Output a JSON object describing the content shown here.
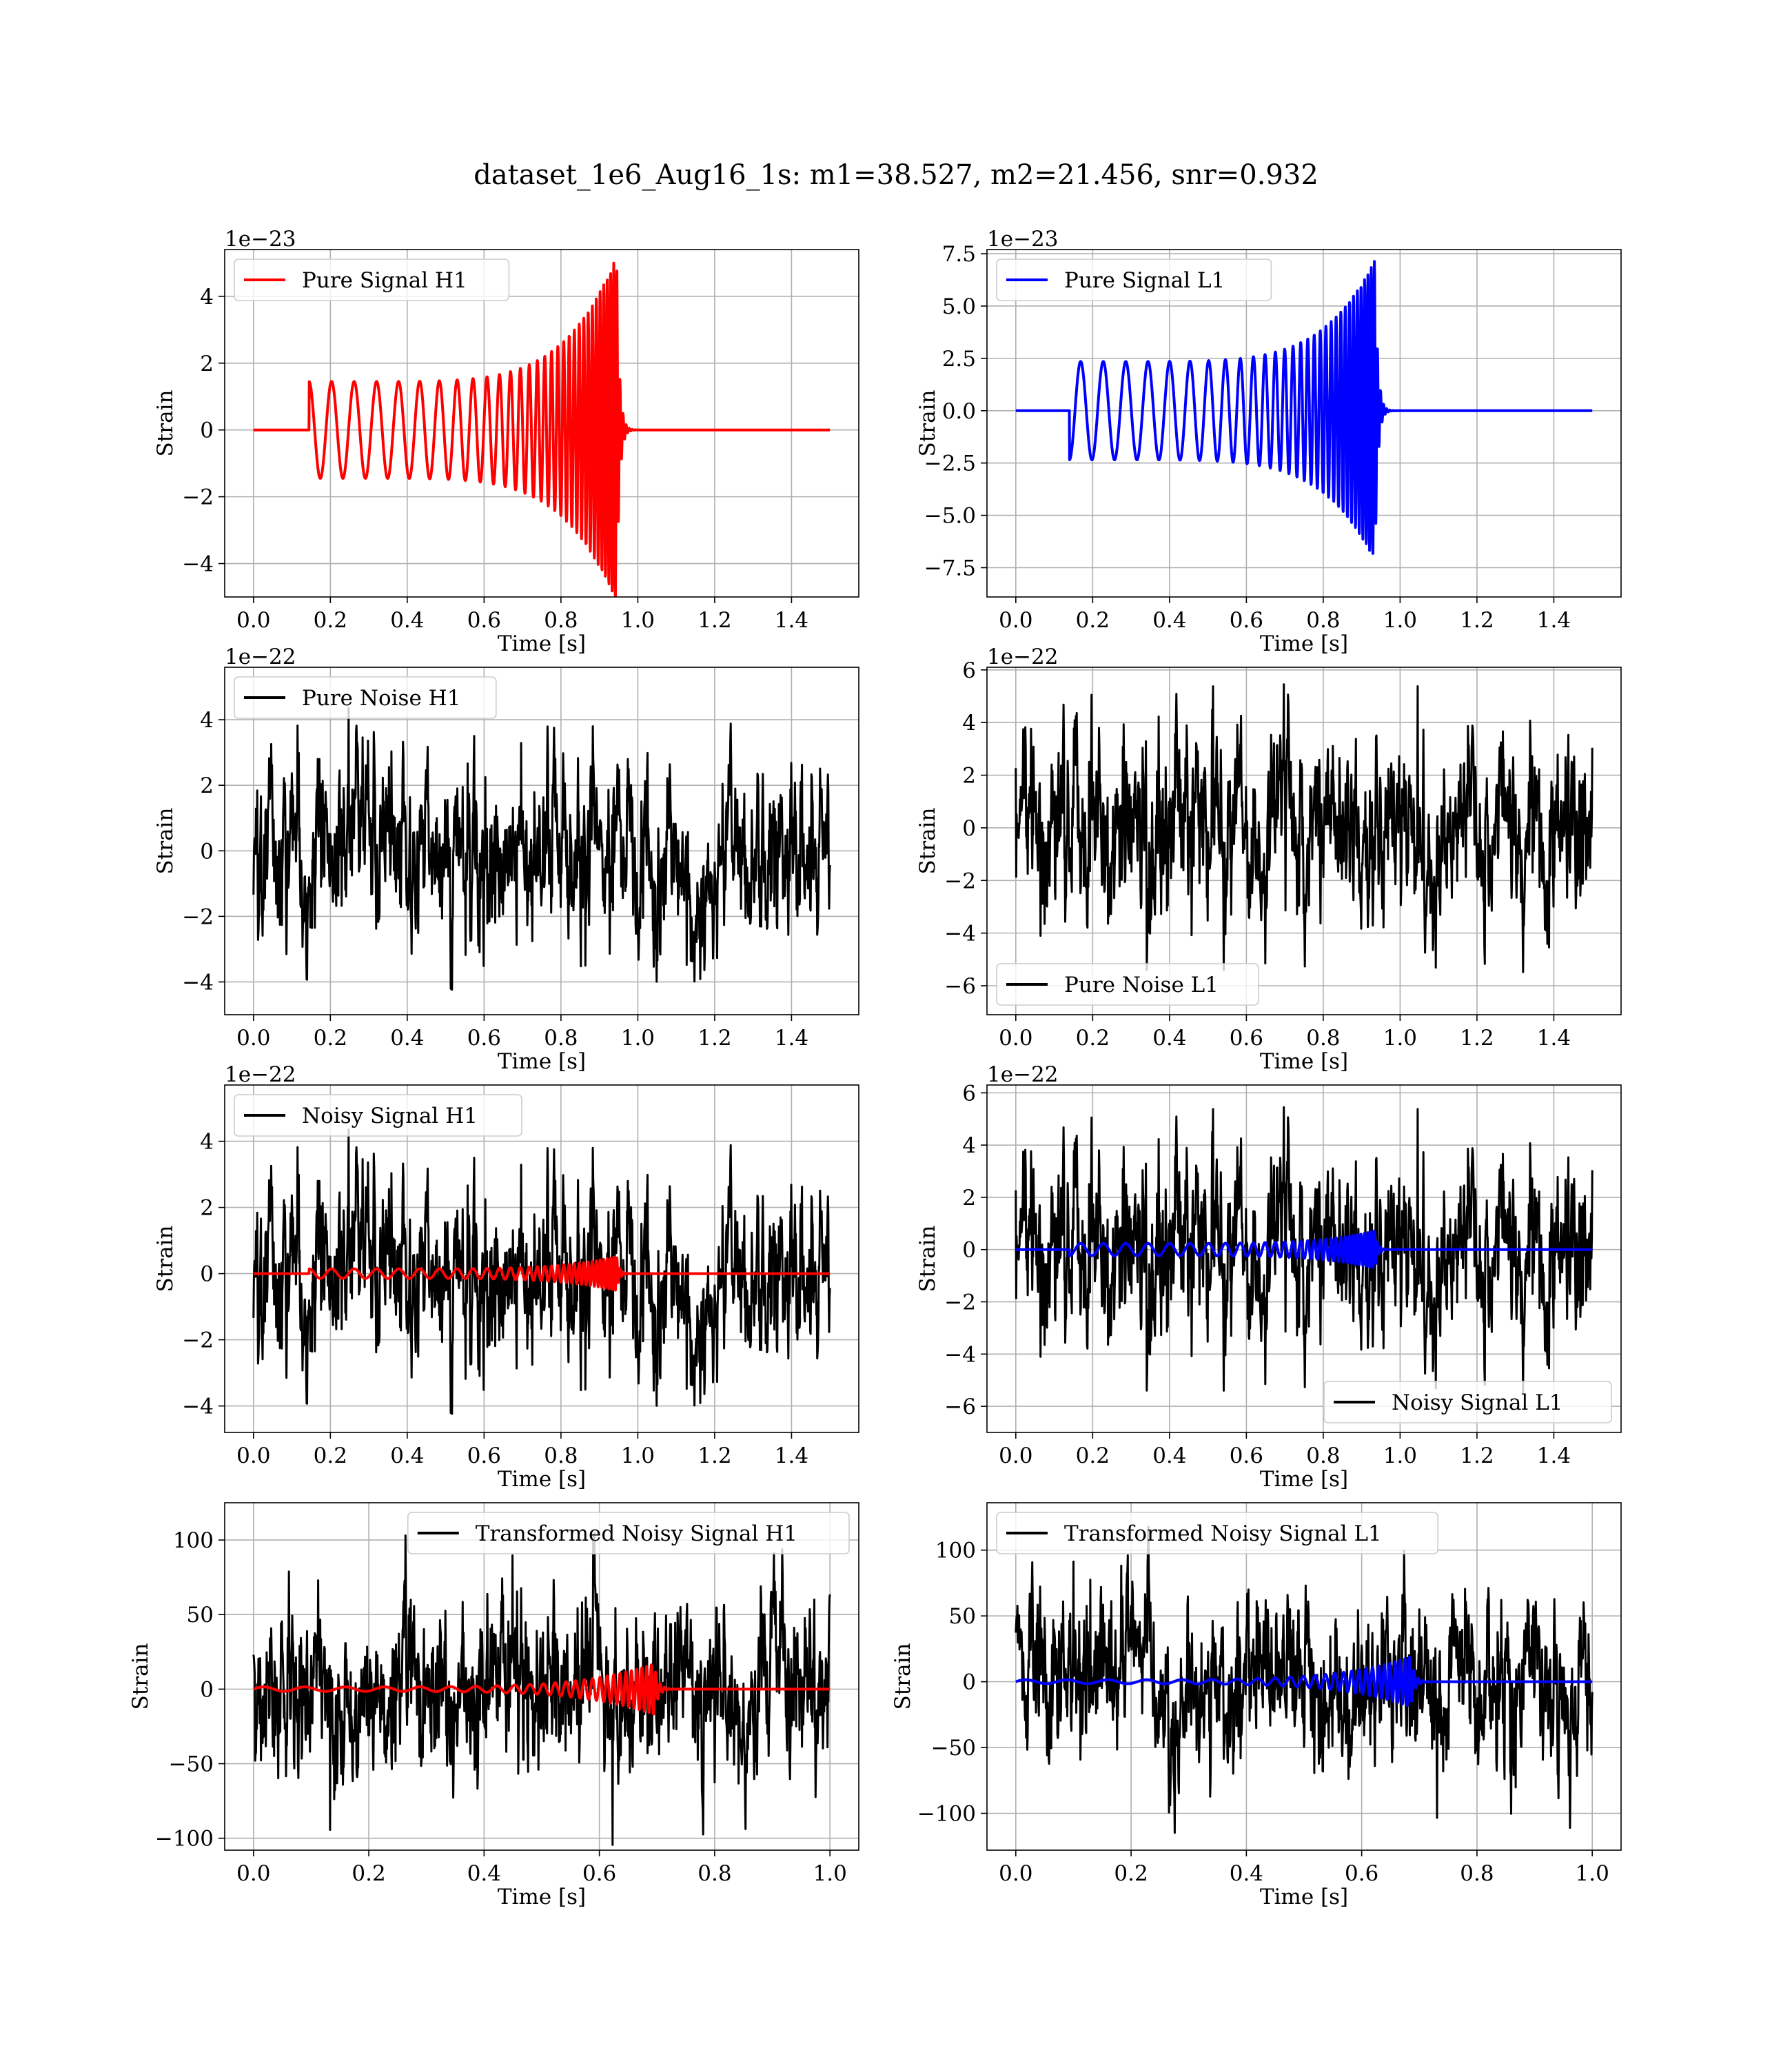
{
  "title": "dataset_1e6_Aug16_1s: m1=38.527, m2=21.456, snr=0.932",
  "colors": {
    "h1": "#ff0000",
    "l1": "#0000ff",
    "noise": "#000000",
    "grid": "#b0b0b0"
  },
  "chart_data": [
    {
      "type": "line",
      "panel": "pure-signal-h1",
      "xlabel": "Time [s]",
      "ylabel": "Strain",
      "offset_text": "1e−23",
      "xlim": [
        -0.075,
        1.575
      ],
      "ylim": [
        -5.0,
        5.4
      ],
      "xticks": [
        0.0,
        0.2,
        0.4,
        0.6,
        0.8,
        1.0,
        1.2,
        1.4
      ],
      "xtick_labels": [
        "0.0",
        "0.2",
        "0.4",
        "0.6",
        "0.8",
        "1.0",
        "1.2",
        "1.4"
      ],
      "yticks": [
        -4,
        -2,
        0,
        2,
        4
      ],
      "ytick_labels": [
        "−4",
        "−2",
        "0",
        "2",
        "4"
      ],
      "legend": {
        "position": "upper left",
        "entries": [
          {
            "label": "Pure Signal H1",
            "color": "#ff0000"
          }
        ]
      },
      "series": [
        {
          "name": "Pure Signal H1",
          "kind": "chirp",
          "color": "#ff0000",
          "x_range": [
            0.0,
            1.5
          ],
          "t_start": 0.145,
          "t_merge": 0.945,
          "amp_start": 1.45,
          "amp_peak": 5.2,
          "freq_start": 17,
          "freq_end": 125,
          "phase": 1.57
        }
      ]
    },
    {
      "type": "line",
      "panel": "pure-signal-l1",
      "xlabel": "Time [s]",
      "ylabel": "Strain",
      "offset_text": "1e−23",
      "xlim": [
        -0.075,
        1.575
      ],
      "ylim": [
        -8.9,
        7.7
      ],
      "xticks": [
        0.0,
        0.2,
        0.4,
        0.6,
        0.8,
        1.0,
        1.2,
        1.4
      ],
      "xtick_labels": [
        "0.0",
        "0.2",
        "0.4",
        "0.6",
        "0.8",
        "1.0",
        "1.2",
        "1.4"
      ],
      "yticks": [
        -7.5,
        -5.0,
        -2.5,
        0.0,
        2.5,
        5.0,
        7.5
      ],
      "ytick_labels": [
        "−7.5",
        "−5.0",
        "−2.5",
        "0.0",
        "2.5",
        "5.0",
        "7.5"
      ],
      "legend": {
        "position": "upper left",
        "entries": [
          {
            "label": "Pure Signal L1",
            "color": "#0000ff"
          }
        ]
      },
      "series": [
        {
          "name": "Pure Signal L1",
          "kind": "chirp",
          "color": "#0000ff",
          "x_range": [
            0.0,
            1.5
          ],
          "t_start": 0.14,
          "t_merge": 0.935,
          "amp_start": 2.35,
          "amp_peak": 7.2,
          "freq_start": 17,
          "freq_end": 125,
          "phase": -1.57
        }
      ]
    },
    {
      "type": "line",
      "panel": "pure-noise-h1",
      "xlabel": "Time [s]",
      "ylabel": "Strain",
      "offset_text": "1e−22",
      "xlim": [
        -0.075,
        1.575
      ],
      "ylim": [
        -5.0,
        5.6
      ],
      "xticks": [
        0.0,
        0.2,
        0.4,
        0.6,
        0.8,
        1.0,
        1.2,
        1.4
      ],
      "xtick_labels": [
        "0.0",
        "0.2",
        "0.4",
        "0.6",
        "0.8",
        "1.0",
        "1.2",
        "1.4"
      ],
      "yticks": [
        -4,
        -2,
        0,
        2,
        4
      ],
      "ytick_labels": [
        "−4",
        "−2",
        "0",
        "2",
        "4"
      ],
      "legend": {
        "position": "upper left",
        "entries": [
          {
            "label": "Pure Noise H1",
            "color": "#000000"
          }
        ]
      },
      "series": [
        {
          "name": "Pure Noise H1",
          "kind": "noise",
          "color": "#000000",
          "x_range": [
            0.0,
            1.5
          ],
          "amp": 1.3,
          "peak": 5.4,
          "seed": 11
        }
      ]
    },
    {
      "type": "line",
      "panel": "pure-noise-l1",
      "xlabel": "Time [s]",
      "ylabel": "Strain",
      "offset_text": "1e−22",
      "xlim": [
        -0.075,
        1.575
      ],
      "ylim": [
        -7.1,
        6.1
      ],
      "xticks": [
        0.0,
        0.2,
        0.4,
        0.6,
        0.8,
        1.0,
        1.2,
        1.4
      ],
      "xtick_labels": [
        "0.0",
        "0.2",
        "0.4",
        "0.6",
        "0.8",
        "1.0",
        "1.2",
        "1.4"
      ],
      "yticks": [
        -6,
        -4,
        -2,
        0,
        2,
        4,
        6
      ],
      "ytick_labels": [
        "−6",
        "−4",
        "−2",
        "0",
        "2",
        "4",
        "6"
      ],
      "legend": {
        "position": "lower left",
        "entries": [
          {
            "label": "Pure Noise L1",
            "color": "#000000"
          }
        ]
      },
      "series": [
        {
          "name": "Pure Noise L1",
          "kind": "noise",
          "color": "#000000",
          "x_range": [
            0.0,
            1.5
          ],
          "amp": 1.6,
          "peak": 5.6,
          "seed": 23
        }
      ]
    },
    {
      "type": "line",
      "panel": "noisy-signal-h1",
      "xlabel": "Time [s]",
      "ylabel": "Strain",
      "offset_text": "1e−22",
      "xlim": [
        -0.075,
        1.575
      ],
      "ylim": [
        -4.8,
        5.7
      ],
      "xticks": [
        0.0,
        0.2,
        0.4,
        0.6,
        0.8,
        1.0,
        1.2,
        1.4
      ],
      "xtick_labels": [
        "0.0",
        "0.2",
        "0.4",
        "0.6",
        "0.8",
        "1.0",
        "1.2",
        "1.4"
      ],
      "yticks": [
        -4,
        -2,
        0,
        2,
        4
      ],
      "ytick_labels": [
        "−4",
        "−2",
        "0",
        "2",
        "4"
      ],
      "legend": {
        "position": "upper left",
        "entries": [
          {
            "label": "Noisy Signal H1",
            "color": "#000000"
          }
        ]
      },
      "series": [
        {
          "name": "Noisy Signal H1",
          "kind": "noise",
          "color": "#000000",
          "x_range": [
            0.0,
            1.5
          ],
          "amp": 1.3,
          "peak": 5.4,
          "seed": 11
        },
        {
          "kind": "chirp",
          "color": "#ff0000",
          "x_range": [
            0.0,
            1.5
          ],
          "t_start": 0.145,
          "t_merge": 0.945,
          "amp_start": 0.145,
          "amp_peak": 0.52,
          "freq_start": 17,
          "freq_end": 125,
          "phase": 1.57
        }
      ]
    },
    {
      "type": "line",
      "panel": "noisy-signal-l1",
      "xlabel": "Time [s]",
      "ylabel": "Strain",
      "offset_text": "1e−22",
      "xlim": [
        -0.075,
        1.575
      ],
      "ylim": [
        -7.0,
        6.3
      ],
      "xticks": [
        0.0,
        0.2,
        0.4,
        0.6,
        0.8,
        1.0,
        1.2,
        1.4
      ],
      "xtick_labels": [
        "0.0",
        "0.2",
        "0.4",
        "0.6",
        "0.8",
        "1.0",
        "1.2",
        "1.4"
      ],
      "yticks": [
        -6,
        -4,
        -2,
        0,
        2,
        4,
        6
      ],
      "ytick_labels": [
        "−6",
        "−4",
        "−2",
        "0",
        "2",
        "4",
        "6"
      ],
      "legend": {
        "position": "lower right",
        "entries": [
          {
            "label": "Noisy Signal L1",
            "color": "#000000"
          }
        ]
      },
      "series": [
        {
          "name": "Noisy Signal L1",
          "kind": "noise",
          "color": "#000000",
          "x_range": [
            0.0,
            1.5
          ],
          "amp": 1.6,
          "peak": 5.6,
          "seed": 23
        },
        {
          "kind": "chirp",
          "color": "#0000ff",
          "x_range": [
            0.0,
            1.5
          ],
          "t_start": 0.14,
          "t_merge": 0.935,
          "amp_start": 0.235,
          "amp_peak": 0.72,
          "freq_start": 17,
          "freq_end": 125,
          "phase": -1.57
        }
      ]
    },
    {
      "type": "line",
      "panel": "transformed-noisy-signal-h1",
      "xlabel": "Time [s]",
      "ylabel": "Strain",
      "offset_text": "",
      "xlim": [
        -0.05,
        1.05
      ],
      "ylim": [
        -108,
        125
      ],
      "xticks": [
        0.0,
        0.2,
        0.4,
        0.6,
        0.8,
        1.0
      ],
      "xtick_labels": [
        "0.0",
        "0.2",
        "0.4",
        "0.6",
        "0.8",
        "1.0"
      ],
      "yticks": [
        -100,
        -50,
        0,
        50,
        100
      ],
      "ytick_labels": [
        "−100",
        "−50",
        "0",
        "50",
        "100"
      ],
      "legend": {
        "position": "upper right",
        "entries": [
          {
            "label": "Transformed Noisy Signal H1",
            "color": "#000000"
          }
        ]
      },
      "series": [
        {
          "name": "Transformed Noisy Signal H1",
          "kind": "noise",
          "color": "#000000",
          "x_range": [
            0.0,
            1.0
          ],
          "amp": 28,
          "peak": 112,
          "seed": 37
        },
        {
          "kind": "chirp",
          "color": "#ff0000",
          "x_range": [
            0.0,
            1.0
          ],
          "t_start": 0.0,
          "t_merge": 0.695,
          "amp_start": 1.5,
          "amp_peak": 17,
          "freq_start": 14,
          "freq_end": 130,
          "phase": 0.0
        }
      ]
    },
    {
      "type": "line",
      "panel": "transformed-noisy-signal-l1",
      "xlabel": "Time [s]",
      "ylabel": "Strain",
      "offset_text": "",
      "xlim": [
        -0.05,
        1.05
      ],
      "ylim": [
        -128,
        136
      ],
      "xticks": [
        0.0,
        0.2,
        0.4,
        0.6,
        0.8,
        1.0
      ],
      "xtick_labels": [
        "0.0",
        "0.2",
        "0.4",
        "0.6",
        "0.8",
        "1.0"
      ],
      "yticks": [
        -100,
        -50,
        0,
        50,
        100
      ],
      "ytick_labels": [
        "−100",
        "−50",
        "0",
        "50",
        "100"
      ],
      "legend": {
        "position": "upper left",
        "entries": [
          {
            "label": "Transformed Noisy Signal L1",
            "color": "#000000"
          }
        ]
      },
      "series": [
        {
          "name": "Transformed Noisy Signal L1",
          "kind": "noise",
          "color": "#000000",
          "x_range": [
            0.0,
            1.0
          ],
          "amp": 30,
          "peak": 118,
          "seed": 53
        },
        {
          "kind": "chirp",
          "color": "#0000ff",
          "x_range": [
            0.0,
            1.0
          ],
          "t_start": 0.0,
          "t_merge": 0.685,
          "amp_start": 1.5,
          "amp_peak": 19,
          "freq_start": 14,
          "freq_end": 130,
          "phase": 0.0
        }
      ]
    }
  ]
}
